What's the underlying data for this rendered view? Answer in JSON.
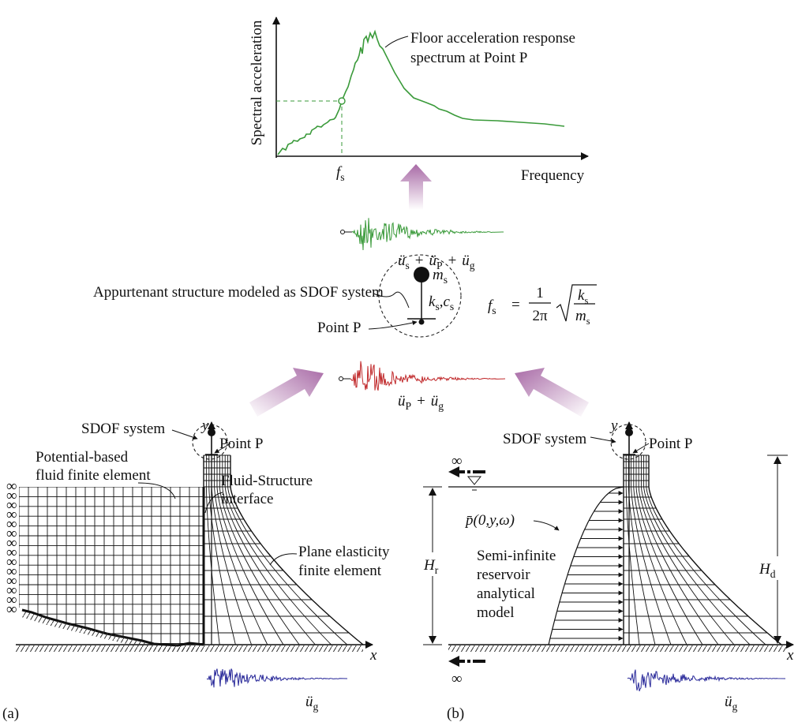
{
  "spectrum": {
    "y_label": "Spectral acceleration",
    "x_label": "Frequency",
    "tick": {
      "t": "f",
      "sub": "s"
    },
    "annotation": [
      "Floor acceleration response",
      "spectrum at Point P"
    ]
  },
  "signals": {
    "top": [
      {
        "t": "ü",
        "sub": "s"
      },
      "+",
      {
        "t": "ü",
        "sub": "P"
      },
      "+",
      {
        "t": "ü",
        "sub": "g"
      }
    ],
    "middle": [
      {
        "t": "ü",
        "sub": "P"
      },
      "+",
      {
        "t": "ü",
        "sub": "g"
      }
    ]
  },
  "sdof": {
    "caption": "Appurtenant structure modeled as SDOF system",
    "mass": {
      "t": "m",
      "sub": "s"
    },
    "spring": [
      {
        "t": "k",
        "sub": "s"
      },
      ",",
      {
        "t": "c",
        "sub": "s"
      }
    ],
    "point": "Point P",
    "formula": {
      "lhs": {
        "t": "f",
        "sub": "s"
      },
      "eq": "=",
      "num": "1",
      "den": "2π",
      "root_num": {
        "t": "k",
        "sub": "s"
      },
      "root_den": {
        "t": "m",
        "sub": "s"
      }
    }
  },
  "panel_a": {
    "label": "(a)",
    "y": "y",
    "x": "x",
    "sdof": "SDOF system",
    "point": "Point P",
    "fluid": [
      "Potential-based",
      "fluid finite element"
    ],
    "interface": [
      "Fluid-Structure",
      "interface"
    ],
    "solid": [
      "Plane elasticity",
      "finite element"
    ],
    "infinity": "∞",
    "signal": [
      {
        "t": "ü",
        "sub": "g"
      }
    ]
  },
  "panel_b": {
    "label": "(b)",
    "y": "y",
    "x": "x",
    "sdof": "SDOF system",
    "point": "Point P",
    "infinity": "∞",
    "pressure": "p̄(0,y,ω)",
    "reservoir": [
      "Semi-infinite",
      "reservoir",
      "analytical",
      "model"
    ],
    "h_r": {
      "t": "H",
      "sub": "r"
    },
    "h_d": {
      "t": "H",
      "sub": "d"
    },
    "signal": [
      {
        "t": "ü",
        "sub": "g"
      }
    ]
  }
}
